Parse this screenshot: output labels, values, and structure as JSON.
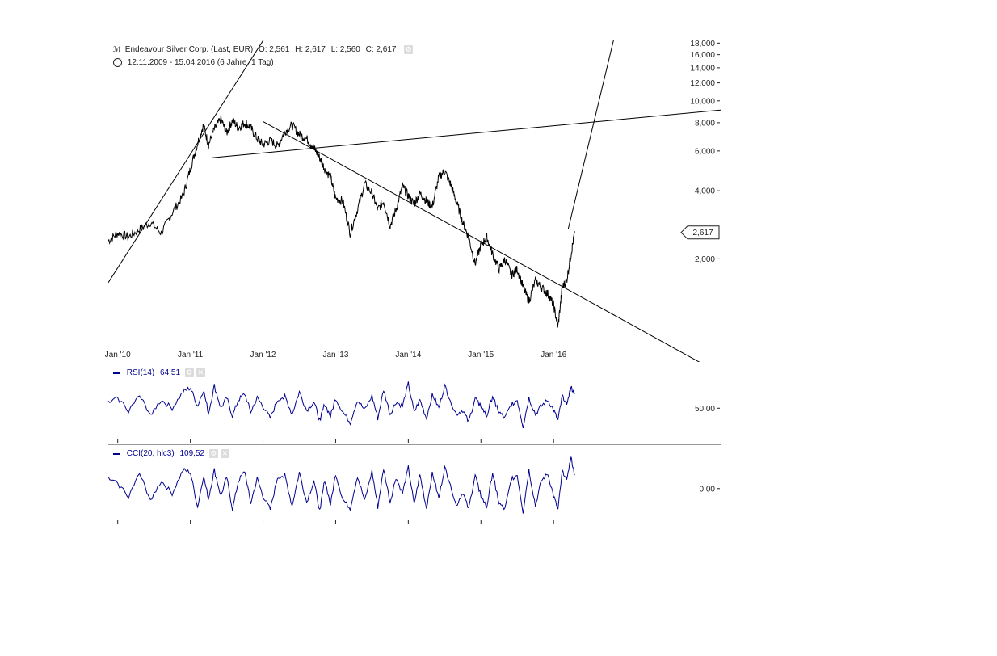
{
  "header": {
    "instrument": "Endeavour Silver Corp. (Last, EUR)",
    "open": "O: 2,561",
    "high": "H: 2,617",
    "low": "L: 2,560",
    "close": "C: 2,617",
    "period": "12.11.2009 - 15.04.2016 (6 Jahre, 1 Tag)"
  },
  "indicators": {
    "rsi": {
      "label": "RSI(14)",
      "value": "64,51"
    },
    "cci": {
      "label": "CCI(20, hlc3)",
      "value": "109,52"
    }
  },
  "colors": {
    "price": "#000000",
    "indicator": "#000090",
    "grid": "#999999"
  },
  "chart_data": [
    {
      "type": "line",
      "scale": "log",
      "title": "Endeavour Silver Corp. (Last, EUR)",
      "x_tick_labels": [
        "Jan '10",
        "Jan '11",
        "Jan '12",
        "Jan '13",
        "Jan '14",
        "Jan '15",
        "Jan '16"
      ],
      "y_ticks": [
        {
          "value": 18,
          "label": "18,000"
        },
        {
          "value": 16,
          "label": "16,000"
        },
        {
          "value": 14,
          "label": "14,000"
        },
        {
          "value": 12,
          "label": "12,000"
        },
        {
          "value": 10,
          "label": "10,000"
        },
        {
          "value": 8,
          "label": "8,000"
        },
        {
          "value": 6,
          "label": "6,000"
        },
        {
          "value": 4,
          "label": "4,000"
        },
        {
          "value": 2,
          "label": "2,000"
        }
      ],
      "ylim": [
        0.7,
        18.5
      ],
      "xlim": [
        2009.87,
        2018.3
      ],
      "last_value": {
        "value": 2.617,
        "label": "2,617"
      },
      "series": [
        {
          "x": [
            2009.87,
            2010.0,
            2010.15,
            2010.3,
            2010.45,
            2010.6,
            2010.75,
            2010.9,
            2011.0,
            2011.1,
            2011.18,
            2011.25,
            2011.33,
            2011.42,
            2011.5,
            2011.58,
            2011.66,
            2011.75,
            2011.83,
            2011.92,
            2012.0,
            2012.1,
            2012.2,
            2012.3,
            2012.4,
            2012.5,
            2012.6,
            2012.7,
            2012.78,
            2012.85,
            2012.93,
            2013.0,
            2013.1,
            2013.2,
            2013.3,
            2013.4,
            2013.5,
            2013.58,
            2013.66,
            2013.75,
            2013.83,
            2013.92,
            2014.0,
            2014.08,
            2014.16,
            2014.25,
            2014.33,
            2014.42,
            2014.5,
            2014.58,
            2014.66,
            2014.75,
            2014.83,
            2014.92,
            2015.0,
            2015.08,
            2015.16,
            2015.25,
            2015.33,
            2015.42,
            2015.5,
            2015.58,
            2015.66,
            2015.75,
            2015.83,
            2015.92,
            2016.0,
            2016.06,
            2016.12,
            2016.18,
            2016.24,
            2016.29
          ],
          "y": [
            2.4,
            2.6,
            2.5,
            2.7,
            2.9,
            2.6,
            3.2,
            3.8,
            5.0,
            6.5,
            7.8,
            6.4,
            7.5,
            8.3,
            7.2,
            8.2,
            7.6,
            8.0,
            7.6,
            6.8,
            6.4,
            6.7,
            6.3,
            7.3,
            7.8,
            7.1,
            6.8,
            6.2,
            5.6,
            5.0,
            4.6,
            3.7,
            3.6,
            2.6,
            3.3,
            4.3,
            3.9,
            3.3,
            3.6,
            2.8,
            3.3,
            4.2,
            3.8,
            3.5,
            3.9,
            3.6,
            3.4,
            4.6,
            4.9,
            4.3,
            3.6,
            2.9,
            2.5,
            1.9,
            2.3,
            2.5,
            2.1,
            1.8,
            2.0,
            1.7,
            1.8,
            1.5,
            1.3,
            1.6,
            1.5,
            1.4,
            1.25,
            1.0,
            1.5,
            1.6,
            2.1,
            2.617
          ]
        }
      ],
      "trendlines": [
        {
          "x": [
            2009.87,
            2012.07
          ],
          "y": [
            1.57,
            20.0
          ]
        },
        {
          "x": [
            2011.3,
            2018.3
          ],
          "y": [
            5.6,
            9.1
          ]
        },
        {
          "x": [
            2012.0,
            2018.3
          ],
          "y": [
            8.1,
            0.62
          ]
        },
        {
          "x": [
            2016.2,
            2016.85
          ],
          "y": [
            2.7,
            20.0
          ]
        }
      ]
    },
    {
      "type": "line",
      "name": "RSI(14)",
      "title": "RSI(14)",
      "y_ticks": [
        {
          "value": 50,
          "label": "50,00"
        }
      ],
      "ylim": [
        20,
        90
      ],
      "series": [
        {
          "name": "RSI(14)",
          "x": [
            2009.87,
            2010.0,
            2010.15,
            2010.3,
            2010.45,
            2010.6,
            2010.75,
            2010.9,
            2011.0,
            2011.1,
            2011.18,
            2011.25,
            2011.33,
            2011.42,
            2011.5,
            2011.58,
            2011.66,
            2011.75,
            2011.83,
            2011.92,
            2012.0,
            2012.1,
            2012.2,
            2012.3,
            2012.4,
            2012.5,
            2012.6,
            2012.7,
            2012.78,
            2012.85,
            2012.93,
            2013.0,
            2013.1,
            2013.2,
            2013.3,
            2013.4,
            2013.5,
            2013.58,
            2013.66,
            2013.75,
            2013.83,
            2013.92,
            2014.0,
            2014.08,
            2014.16,
            2014.25,
            2014.33,
            2014.42,
            2014.5,
            2014.58,
            2014.66,
            2014.75,
            2014.83,
            2014.92,
            2015.0,
            2015.08,
            2015.16,
            2015.25,
            2015.33,
            2015.42,
            2015.5,
            2015.58,
            2015.66,
            2015.75,
            2015.83,
            2015.92,
            2016.0,
            2016.06,
            2016.12,
            2016.18,
            2016.24,
            2016.29
          ],
          "y": [
            55,
            60,
            48,
            62,
            44,
            58,
            50,
            66,
            70,
            52,
            68,
            45,
            72,
            50,
            60,
            42,
            58,
            64,
            46,
            60,
            52,
            40,
            58,
            62,
            44,
            66,
            48,
            56,
            38,
            54,
            42,
            60,
            46,
            36,
            58,
            48,
            62,
            40,
            68,
            44,
            56,
            52,
            74,
            46,
            58,
            40,
            64,
            50,
            72,
            58,
            44,
            48,
            36,
            60,
            52,
            42,
            62,
            46,
            40,
            54,
            58,
            32,
            60,
            44,
            52,
            58,
            48,
            38,
            62,
            56,
            70,
            64.51
          ]
        }
      ]
    },
    {
      "type": "line",
      "name": "CCI(20, hlc3)",
      "title": "CCI(20, hlc3)",
      "y_ticks": [
        {
          "value": 0,
          "label": "0,00"
        }
      ],
      "ylim": [
        -250,
        280
      ],
      "series": [
        {
          "name": "CCI(20, hlc3)",
          "x": [
            2009.87,
            2010.0,
            2010.15,
            2010.3,
            2010.45,
            2010.6,
            2010.75,
            2010.9,
            2011.0,
            2011.1,
            2011.18,
            2011.25,
            2011.33,
            2011.42,
            2011.5,
            2011.58,
            2011.66,
            2011.75,
            2011.83,
            2011.92,
            2012.0,
            2012.1,
            2012.2,
            2012.3,
            2012.4,
            2012.5,
            2012.6,
            2012.7,
            2012.78,
            2012.85,
            2012.93,
            2013.0,
            2013.1,
            2013.2,
            2013.3,
            2013.4,
            2013.5,
            2013.58,
            2013.66,
            2013.75,
            2013.83,
            2013.92,
            2014.0,
            2014.08,
            2014.16,
            2014.25,
            2014.33,
            2014.42,
            2014.5,
            2014.58,
            2014.66,
            2014.75,
            2014.83,
            2014.92,
            2015.0,
            2015.08,
            2015.16,
            2015.25,
            2015.33,
            2015.42,
            2015.5,
            2015.58,
            2015.66,
            2015.75,
            2015.83,
            2015.92,
            2016.0,
            2016.06,
            2016.12,
            2016.18,
            2016.24,
            2016.29
          ],
          "y": [
            80,
            40,
            -60,
            120,
            -90,
            60,
            -40,
            150,
            130,
            -150,
            100,
            -80,
            150,
            -60,
            90,
            -170,
            60,
            140,
            -120,
            80,
            -60,
            -170,
            90,
            110,
            -140,
            130,
            -110,
            60,
            -180,
            70,
            -130,
            120,
            -90,
            -160,
            100,
            -100,
            140,
            -150,
            160,
            -110,
            90,
            -40,
            170,
            -130,
            110,
            -160,
            130,
            -80,
            170,
            40,
            -140,
            -30,
            -170,
            110,
            -60,
            -150,
            130,
            -120,
            -170,
            80,
            110,
            -190,
            150,
            -140,
            60,
            120,
            -60,
            -170,
            140,
            90,
            250,
            109.52
          ]
        }
      ]
    }
  ]
}
